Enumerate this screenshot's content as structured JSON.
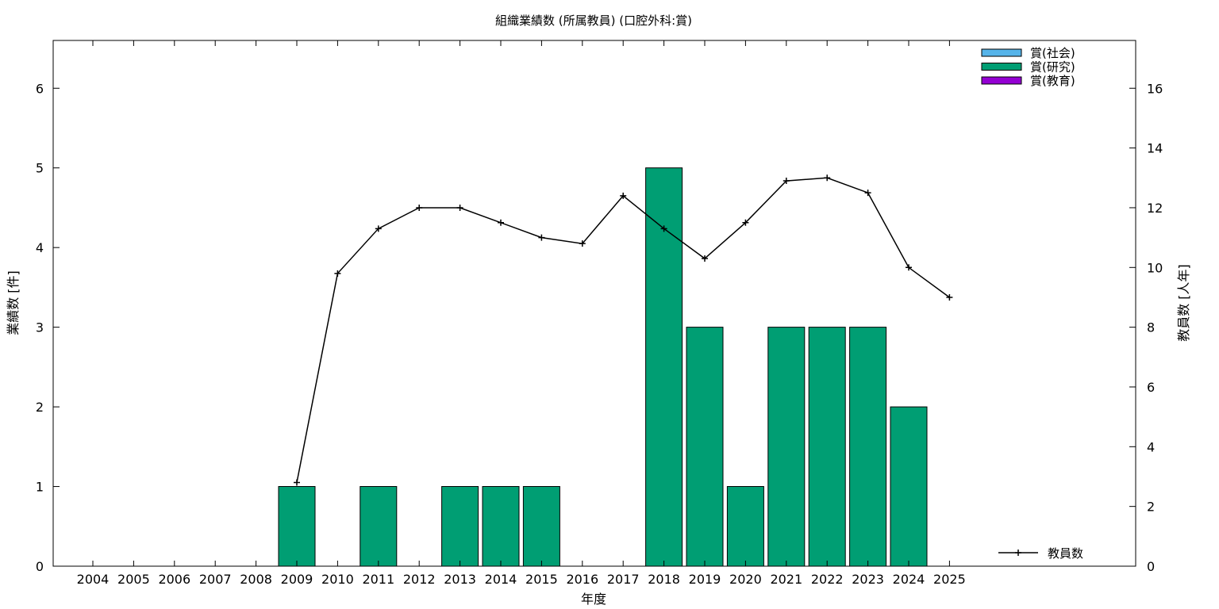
{
  "chart_data": {
    "type": "bar",
    "title": "組織業績数 (所属教員) (口腔外科:賞)",
    "xlabel": "年度",
    "ylabel": "業績数 [件]",
    "y2label": "教員数 [人年]",
    "categories": [
      "2004",
      "2005",
      "2006",
      "2007",
      "2008",
      "2009",
      "2010",
      "2011",
      "2012",
      "2013",
      "2014",
      "2015",
      "2016",
      "2017",
      "2018",
      "2019",
      "2020",
      "2021",
      "2022",
      "2023",
      "2024",
      "2025"
    ],
    "ylim": [
      0,
      6.6
    ],
    "y2lim": [
      0,
      17.6
    ],
    "yticks": [
      "0",
      "1",
      "2",
      "3",
      "4",
      "5",
      "6"
    ],
    "y2ticks": [
      "0",
      "2",
      "4",
      "6",
      "8",
      "10",
      "12",
      "14",
      "16"
    ],
    "grid": false,
    "legend_position": "top-right",
    "series": [
      {
        "name": "賞(社会)",
        "type": "bar",
        "color": "#56b4e9",
        "values": [
          0,
          0,
          0,
          0,
          0,
          0,
          0,
          0,
          0,
          0,
          0,
          0,
          0,
          0,
          0,
          0,
          0,
          0,
          0,
          0,
          0,
          0
        ]
      },
      {
        "name": "賞(研究)",
        "type": "bar",
        "color": "#009e73",
        "values": [
          0,
          0,
          0,
          0,
          0,
          1,
          0,
          1,
          0,
          1,
          1,
          1,
          0,
          0,
          5,
          3,
          1,
          3,
          3,
          3,
          2,
          0
        ]
      },
      {
        "name": "賞(教育)",
        "type": "bar",
        "color": "#9400d3",
        "values": [
          0,
          0,
          0,
          0,
          0,
          0,
          0,
          0,
          0,
          0,
          0,
          0,
          0,
          0,
          0,
          0,
          0,
          0,
          0,
          0,
          0,
          0
        ]
      },
      {
        "name": "教員数",
        "type": "line",
        "axis": "y2",
        "color": "#000000",
        "x": [
          "2009",
          "2010",
          "2011",
          "2012",
          "2013",
          "2014",
          "2015",
          "2016",
          "2017",
          "2018",
          "2019",
          "2020",
          "2021",
          "2022",
          "2023",
          "2024",
          "2025"
        ],
        "values": [
          2.8,
          9.8,
          11.3,
          12.0,
          12.0,
          11.5,
          11.0,
          10.8,
          12.4,
          11.3,
          10.3,
          11.5,
          12.9,
          13.0,
          12.5,
          10.0,
          9.0
        ]
      }
    ]
  }
}
